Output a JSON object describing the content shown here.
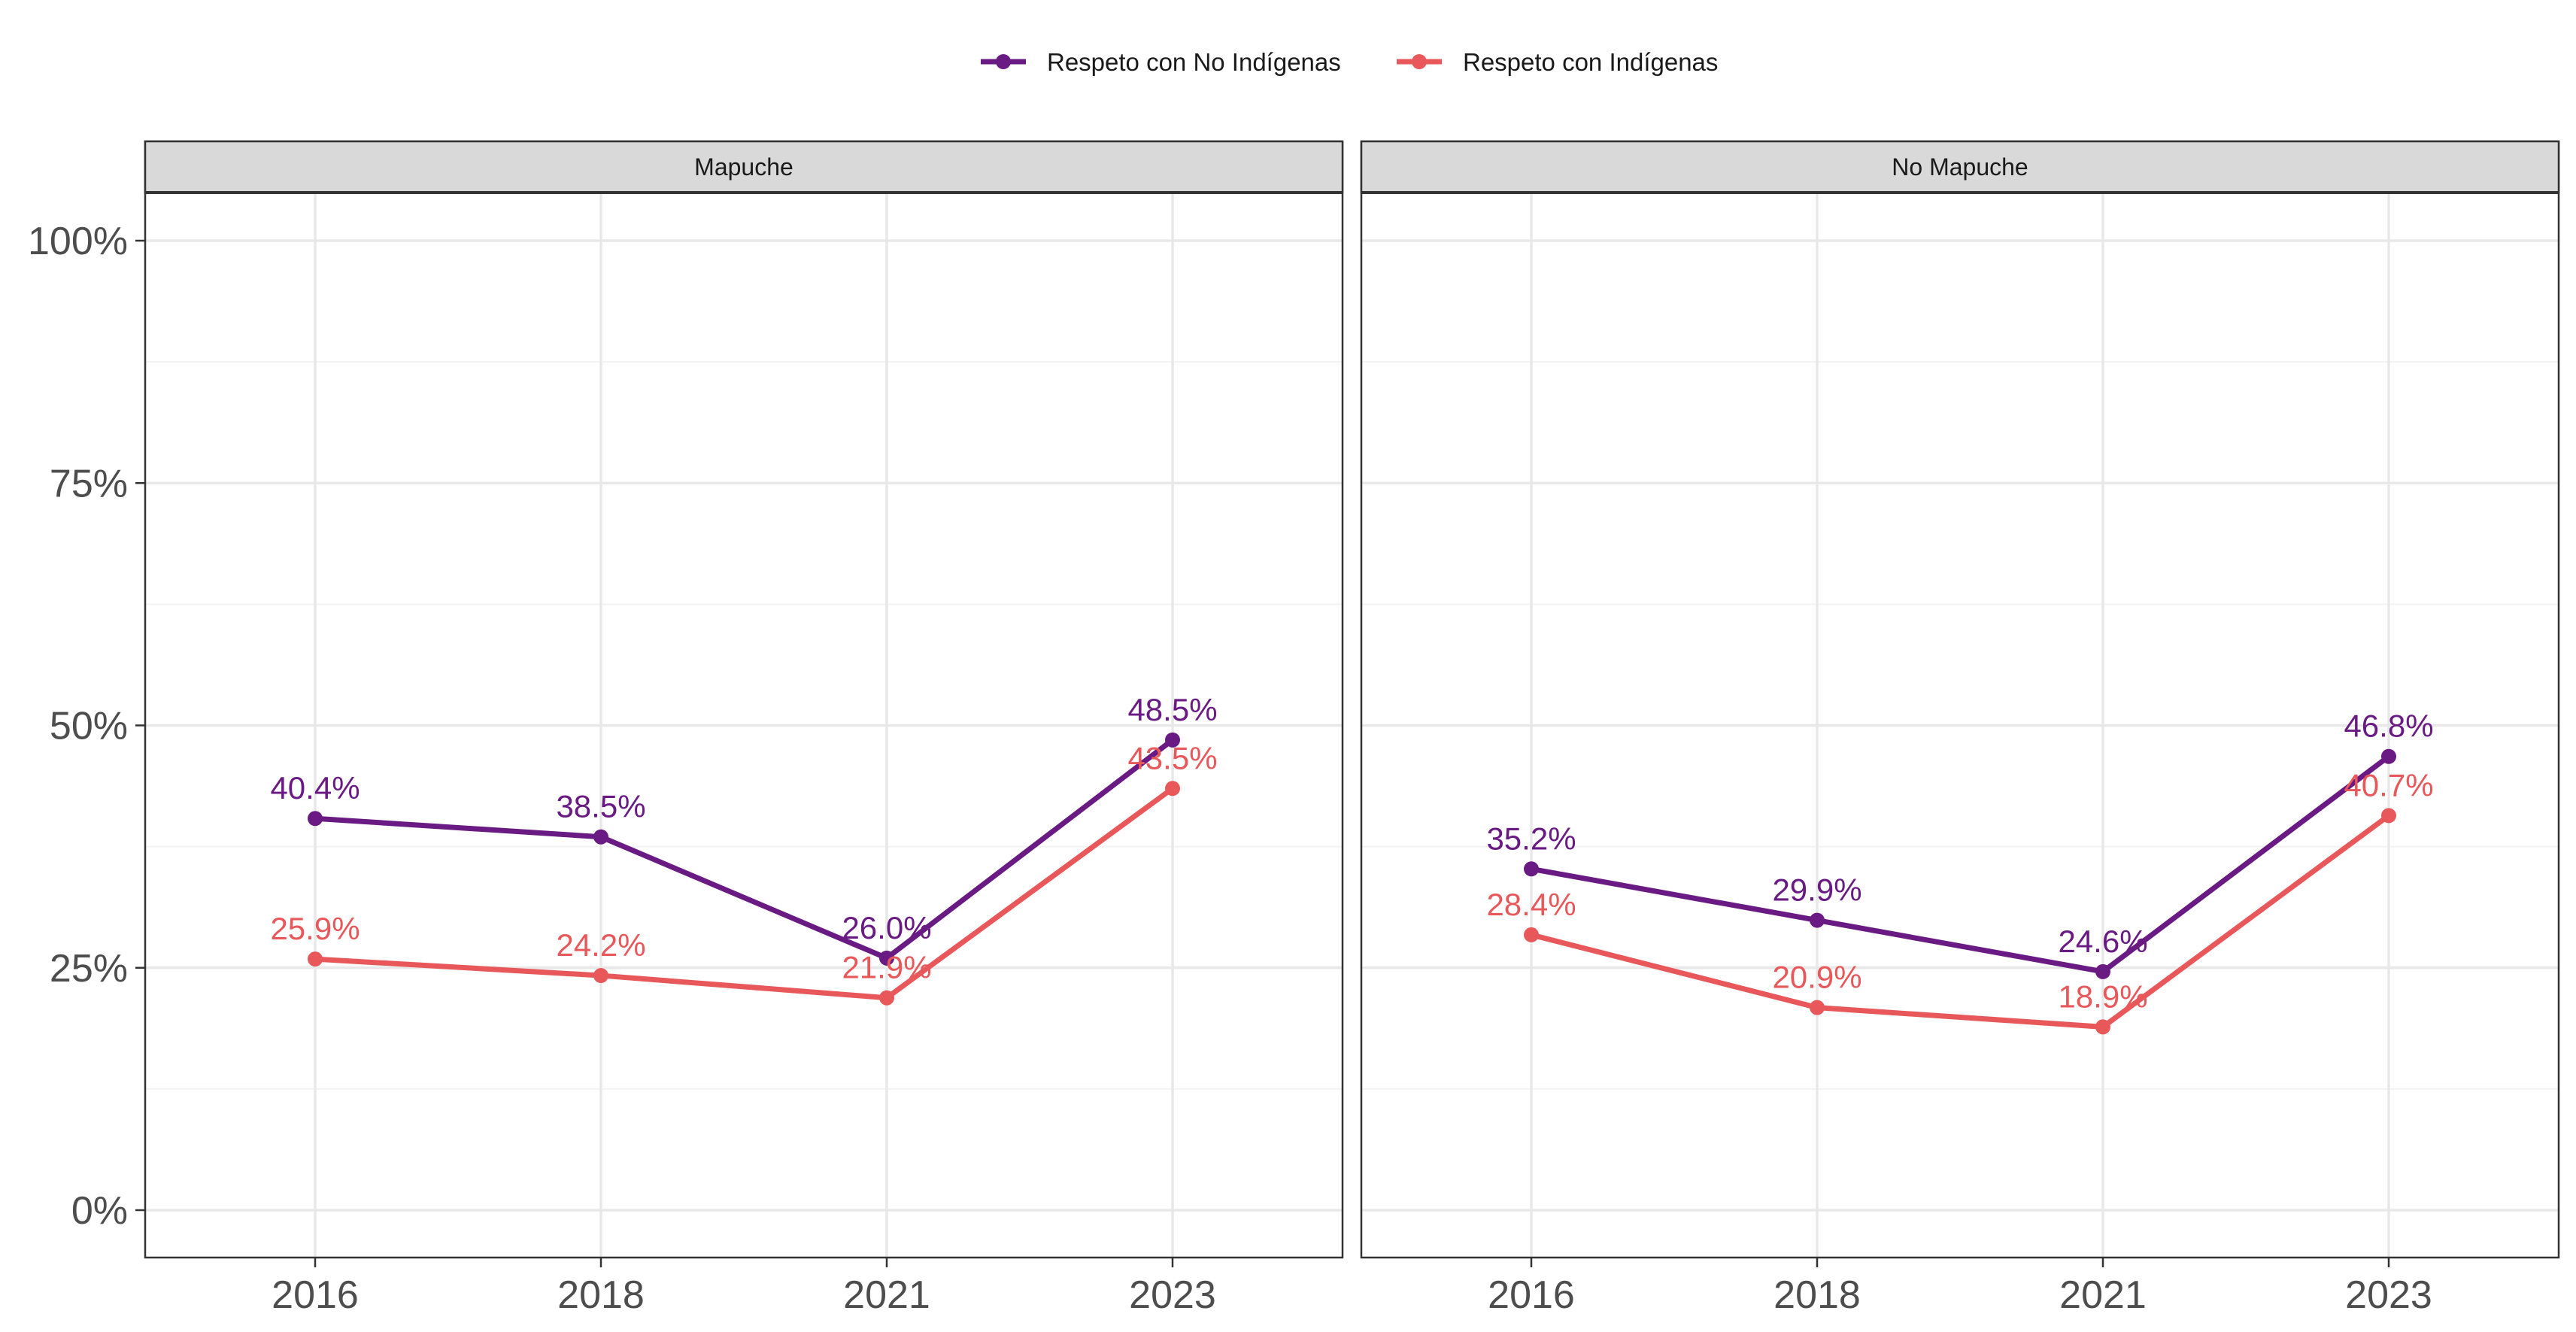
{
  "chart_data": {
    "type": "line",
    "legend_position": "top",
    "grid": true,
    "ylim": [
      0,
      100
    ],
    "y_ticks": [
      "0%",
      "25%",
      "50%",
      "75%",
      "100%"
    ],
    "y_tick_values": [
      0,
      25,
      50,
      75,
      100
    ],
    "x": [
      "2016",
      "2018",
      "2021",
      "2023"
    ],
    "legend": [
      {
        "name": "Respeto con No Indígenas",
        "color": "#6A1B83"
      },
      {
        "name": "Respeto con Indígenas",
        "color": "#E8585A"
      }
    ],
    "panels": [
      {
        "title": "Mapuche",
        "series": [
          {
            "name": "Respeto con No Indígenas",
            "color": "#6A1B83",
            "values": [
              40.4,
              38.5,
              26.0,
              48.5
            ],
            "labels": [
              "40.4%",
              "38.5%",
              "26.0%",
              "48.5%"
            ]
          },
          {
            "name": "Respeto con Indígenas",
            "color": "#E8585A",
            "values": [
              25.9,
              24.2,
              21.9,
              43.5
            ],
            "labels": [
              "25.9%",
              "24.2%",
              "21.9%",
              "43.5%"
            ]
          }
        ]
      },
      {
        "title": "No Mapuche",
        "series": [
          {
            "name": "Respeto con No Indígenas",
            "color": "#6A1B83",
            "values": [
              35.2,
              29.9,
              24.6,
              46.8
            ],
            "labels": [
              "35.2%",
              "29.9%",
              "24.6%",
              "46.8%"
            ]
          },
          {
            "name": "Respeto con Indígenas",
            "color": "#E8585A",
            "values": [
              28.4,
              20.9,
              18.9,
              40.7
            ],
            "labels": [
              "28.4%",
              "20.9%",
              "18.9%",
              "40.7%"
            ]
          }
        ]
      }
    ]
  }
}
